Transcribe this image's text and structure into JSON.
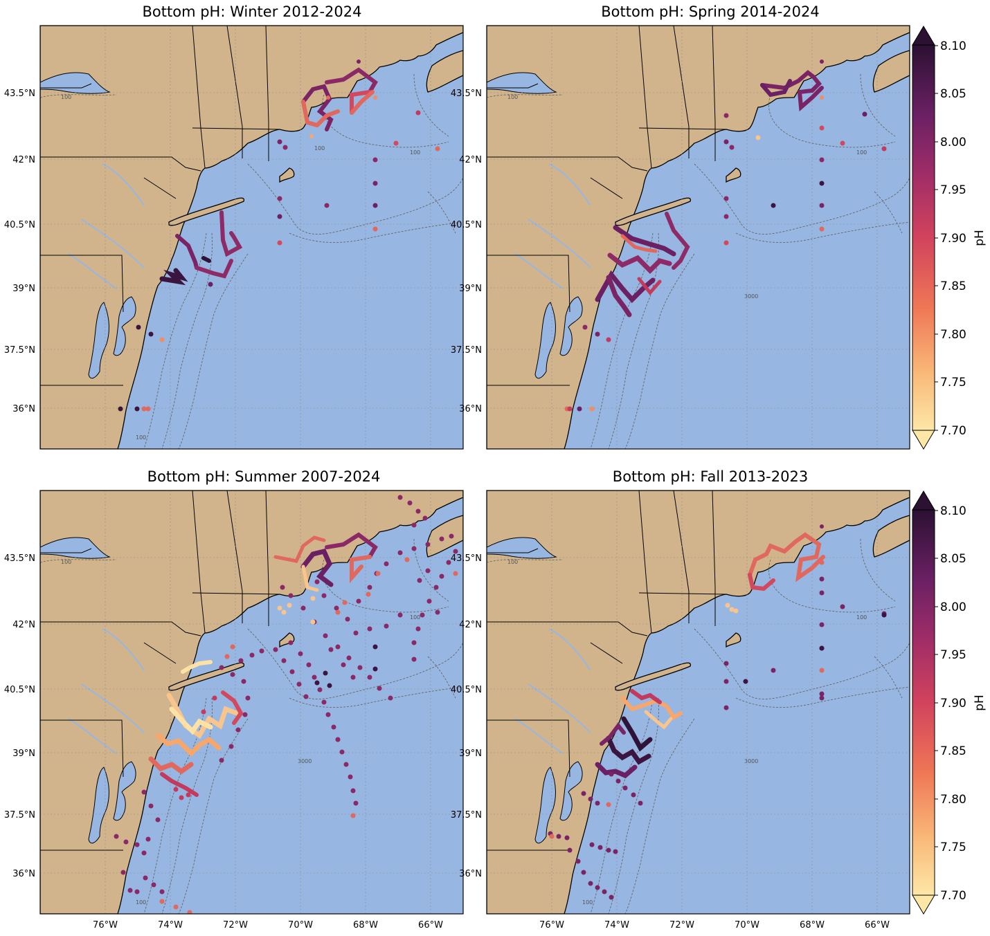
{
  "figure": {
    "colorbar": {
      "label": "pH",
      "ticks": [
        "8.10",
        "8.05",
        "8.00",
        "7.95",
        "7.90",
        "7.85",
        "7.80",
        "7.75",
        "7.70"
      ],
      "vmin": 7.7,
      "vmax": 8.1,
      "colormap": "magma-like (light yellow to dark purple)",
      "extend": "both"
    },
    "lat_ticks": [
      "43.5°N",
      "42°N",
      "40.5°N",
      "39°N",
      "37.5°N",
      "36°N"
    ],
    "lon_ticks": [
      "76°W",
      "74°W",
      "72°W",
      "70°W",
      "68°W",
      "66°W"
    ],
    "contour_labels": [
      "100",
      "100",
      "100",
      "100",
      "100",
      "3000"
    ],
    "colors": {
      "land": "#D2B48C",
      "ocean": "#97B6E1",
      "border": "#000000",
      "graticule": "#8a8a8a"
    },
    "panels": [
      {
        "id": "winter",
        "title": "Bottom pH: Winter 2012-2024",
        "summary": "Nearshore glider tracks in Gulf of Maine (7.85-8.00) and off New Jersey (mostly 7.95-8.05); sparse offshore stations"
      },
      {
        "id": "spring",
        "title": "Bottom pH: Spring 2014-2024",
        "summary": "Dense mid-Atlantic Bight tracks mostly 7.95-8.05; Gulf of Maine track ~8.00-8.05"
      },
      {
        "id": "summer",
        "title": "Bottom pH: Summer 2007-2024",
        "summary": "Low pH (7.70-7.85) nearshore New Jersey and New York Bight; higher offshore (7.95-8.05)"
      },
      {
        "id": "fall",
        "title": "Bottom pH: Fall 2013-2023",
        "summary": "Gulf of Maine track ~7.85-7.90; mixed values off New Jersey 7.75-8.05"
      }
    ]
  }
}
